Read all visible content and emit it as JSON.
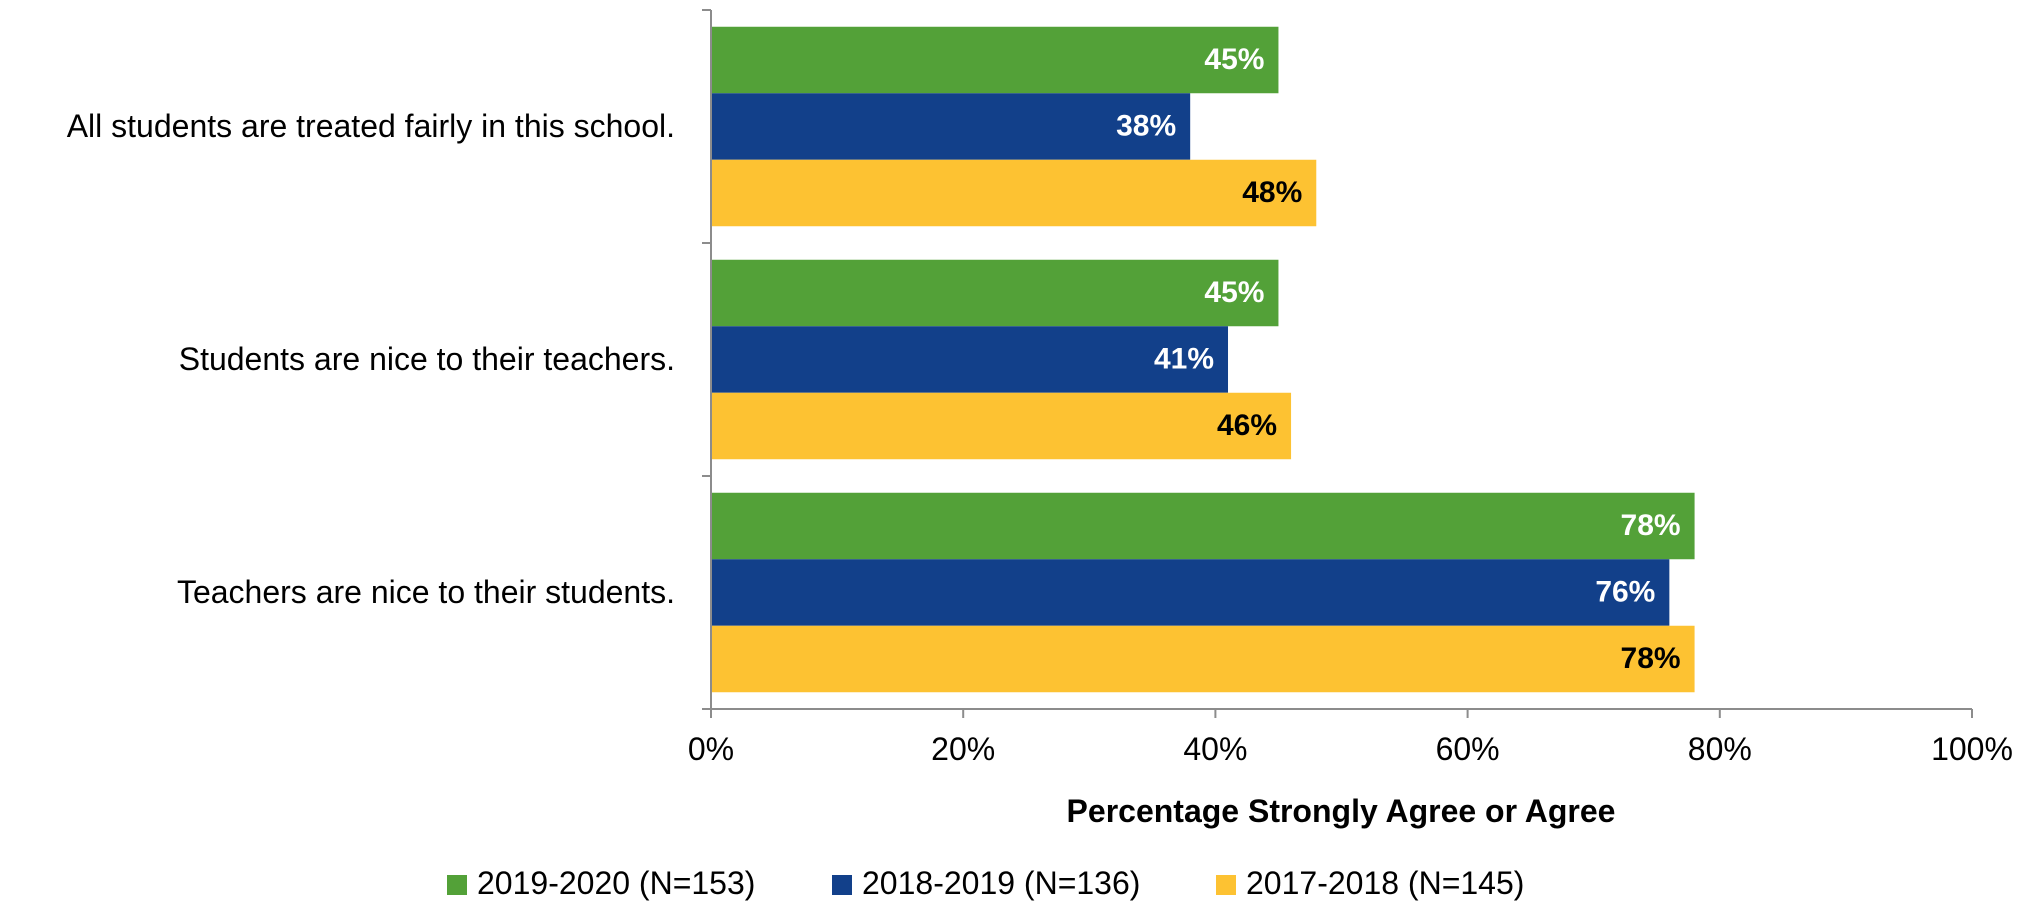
{
  "chart_data": {
    "type": "bar",
    "orientation": "horizontal",
    "categories": [
      "All students are treated fairly in this school.",
      "Students are nice to their teachers.",
      "Teachers are nice to their students."
    ],
    "series": [
      {
        "name": "2019-2020 (N=153)",
        "color": "#53A138",
        "label_color": "#ffffff",
        "values": [
          45,
          45,
          78
        ],
        "labels": [
          "45%",
          "45%",
          "78%"
        ]
      },
      {
        "name": "2018-2019 (N=136)",
        "color": "#12408A",
        "label_color": "#ffffff",
        "values": [
          38,
          41,
          76
        ],
        "labels": [
          "38%",
          "41%",
          "76%"
        ]
      },
      {
        "name": "2017-2018 (N=145)",
        "color": "#FDC232",
        "label_color": "#000000",
        "values": [
          48,
          46,
          78
        ],
        "labels": [
          "48%",
          "46%",
          "78%"
        ]
      }
    ],
    "xlim": [
      0,
      100
    ],
    "xticks": [
      0,
      20,
      40,
      60,
      80,
      100
    ],
    "xtick_labels": [
      "0%",
      "20%",
      "40%",
      "60%",
      "80%",
      "100%"
    ],
    "xlabel": "Percentage Strongly Agree or Agree",
    "ylabel": "",
    "title": "",
    "grid": false,
    "legend_position": "bottom"
  }
}
